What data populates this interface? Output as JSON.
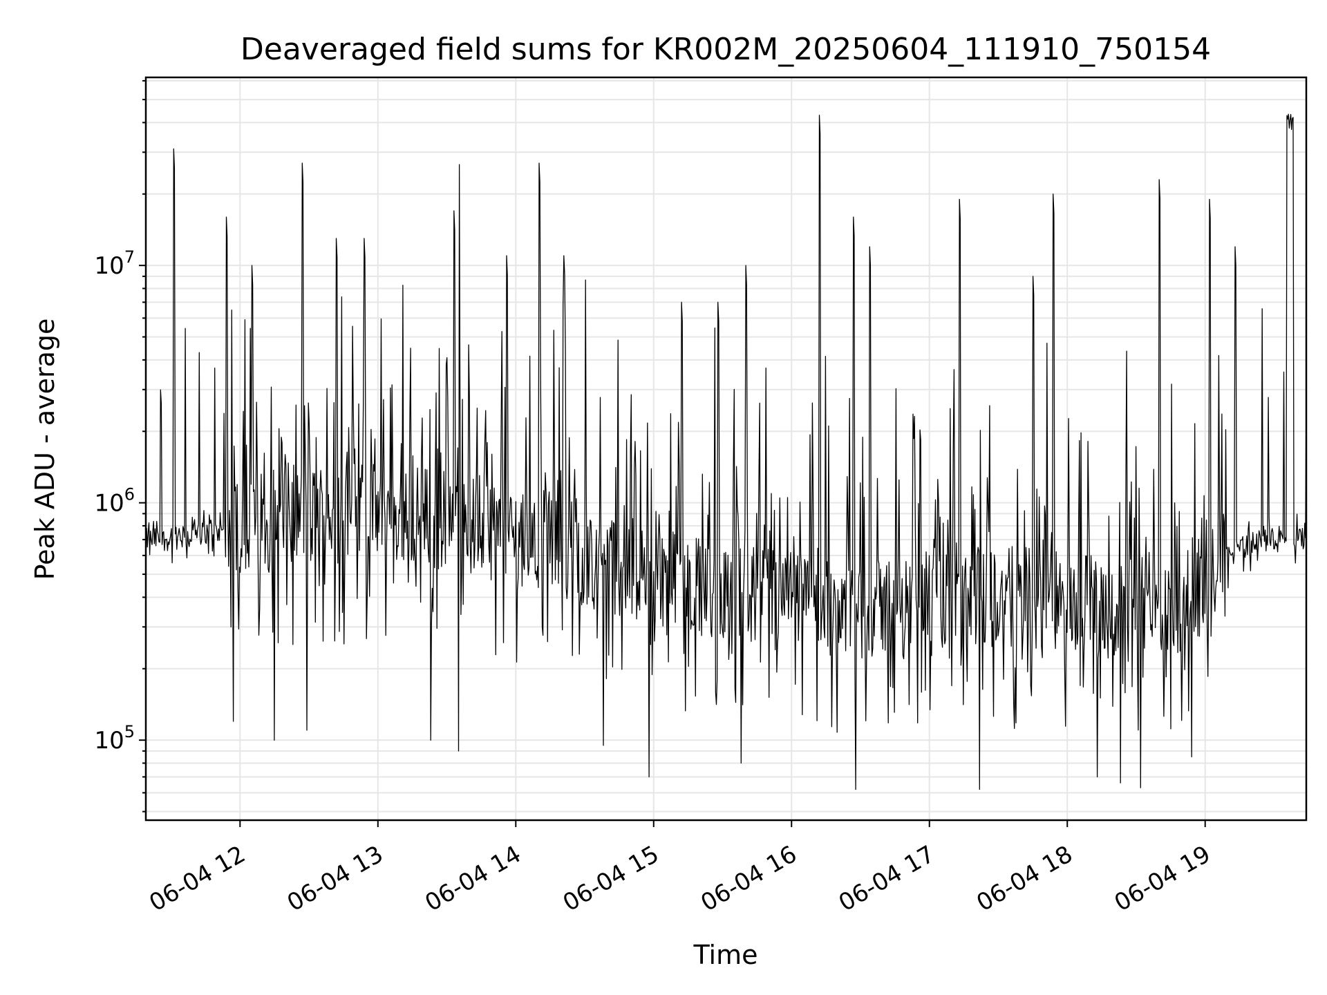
{
  "chart_data": {
    "type": "line",
    "title": "Deaveraged field sums for KR002M_20250604_111910_750154",
    "xlabel": "Time",
    "ylabel": "Peak ADU - average",
    "yscale": "log",
    "ylim": [
      46000,
      62000000
    ],
    "xlim": [
      "2025-06-04 11:19",
      "2025-06-04 19:44"
    ],
    "grid": true,
    "x_tick_labels": [
      "06-04 12",
      "06-04 13",
      "06-04 14",
      "06-04 15",
      "06-04 16",
      "06-04 17",
      "06-04 18",
      "06-04 19"
    ],
    "x_tick_times": [
      "2025-06-04 12:00",
      "2025-06-04 13:00",
      "2025-06-04 14:00",
      "2025-06-04 15:00",
      "2025-06-04 16:00",
      "2025-06-04 17:00",
      "2025-06-04 18:00",
      "2025-06-04 19:00"
    ],
    "y_tick_labels": [
      {
        "base": "10",
        "exp": "5",
        "value": 100000
      },
      {
        "base": "10",
        "exp": "6",
        "value": 1000000
      },
      {
        "base": "10",
        "exp": "7",
        "value": 10000000
      }
    ],
    "series": [
      {
        "color": "#000000",
        "baseline_profile": {
          "x": [
            "2025-06-04 11:19",
            "2025-06-04 11:30",
            "2025-06-04 12:00",
            "2025-06-04 12:30",
            "2025-06-04 13:00",
            "2025-06-04 13:30",
            "2025-06-04 14:00",
            "2025-06-04 14:30",
            "2025-06-04 15:00",
            "2025-06-04 15:30",
            "2025-06-04 16:00",
            "2025-06-04 16:30",
            "2025-06-04 17:00",
            "2025-06-04 17:30",
            "2025-06-04 18:00",
            "2025-06-04 18:30",
            "2025-06-04 19:00",
            "2025-06-04 19:10",
            "2025-06-04 19:30",
            "2025-06-04 19:44"
          ],
          "y": [
            700000,
            700000,
            800000,
            900000,
            900000,
            850000,
            750000,
            600000,
            500000,
            420000,
            380000,
            360000,
            380000,
            400000,
            380000,
            350000,
            400000,
            650000,
            700000,
            700000
          ]
        },
        "peaks": [
          {
            "x": "2025-06-04 11:31",
            "y": 31000000
          },
          {
            "x": "2025-06-04 11:54",
            "y": 16000000
          },
          {
            "x": "2025-06-04 12:05",
            "y": 10000000
          },
          {
            "x": "2025-06-04 12:27",
            "y": 27000000
          },
          {
            "x": "2025-06-04 12:42",
            "y": 13000000
          },
          {
            "x": "2025-06-04 12:54",
            "y": 13000000
          },
          {
            "x": "2025-06-04 13:33",
            "y": 17000000
          },
          {
            "x": "2025-06-04 13:35",
            "y": 32000000
          },
          {
            "x": "2025-06-04 13:56",
            "y": 11000000
          },
          {
            "x": "2025-06-04 14:10",
            "y": 27000000
          },
          {
            "x": "2025-06-04 14:21",
            "y": 11000000
          },
          {
            "x": "2025-06-04 15:12",
            "y": 7000000
          },
          {
            "x": "2025-06-04 15:28",
            "y": 7000000
          },
          {
            "x": "2025-06-04 15:40",
            "y": 10000000
          },
          {
            "x": "2025-06-04 16:12",
            "y": 43000000
          },
          {
            "x": "2025-06-04 16:27",
            "y": 16000000
          },
          {
            "x": "2025-06-04 16:34",
            "y": 12000000
          },
          {
            "x": "2025-06-04 17:13",
            "y": 19000000
          },
          {
            "x": "2025-06-04 17:45",
            "y": 9000000
          },
          {
            "x": "2025-06-04 17:54",
            "y": 20000000
          },
          {
            "x": "2025-06-04 18:40",
            "y": 23000000
          },
          {
            "x": "2025-06-04 19:02",
            "y": 19000000
          },
          {
            "x": "2025-06-04 19:13",
            "y": 12000000
          },
          {
            "x": "2025-06-04 19:37",
            "y": 45000000
          }
        ],
        "troughs": [
          {
            "x": "2025-06-04 11:57",
            "y": 120000
          },
          {
            "x": "2025-06-04 12:15",
            "y": 100000
          },
          {
            "x": "2025-06-04 12:29",
            "y": 110000
          },
          {
            "x": "2025-06-04 13:23",
            "y": 100000
          },
          {
            "x": "2025-06-04 13:35",
            "y": 90000
          },
          {
            "x": "2025-06-04 14:38",
            "y": 95000
          },
          {
            "x": "2025-06-04 14:58",
            "y": 70000
          },
          {
            "x": "2025-06-04 15:38",
            "y": 80000
          },
          {
            "x": "2025-06-04 16:28",
            "y": 62000
          },
          {
            "x": "2025-06-04 17:22",
            "y": 62000
          },
          {
            "x": "2025-06-04 18:13",
            "y": 70000
          },
          {
            "x": "2025-06-04 18:23",
            "y": 66000
          },
          {
            "x": "2025-06-04 18:32",
            "y": 63000
          },
          {
            "x": "2025-06-04 18:54",
            "y": 85000
          }
        ]
      }
    ]
  }
}
